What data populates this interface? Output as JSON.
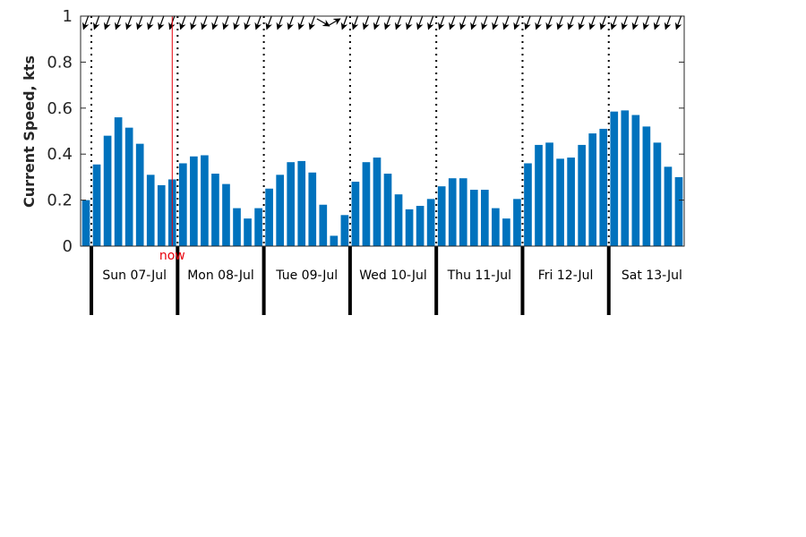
{
  "chart_data": {
    "type": "bar",
    "ylabel": "Current Speed, kts",
    "ylim": [
      0,
      1
    ],
    "yticks": [
      "0",
      "0.2",
      "0.4",
      "0.6",
      "0.8",
      "1"
    ],
    "bar_color": "#0072bd",
    "now_color": "#e8000b",
    "now_label": "now",
    "now_index": 8.5,
    "first_time": "Sat 06-Jul 21:00",
    "interval_hours": 3,
    "values": [
      0.2,
      0.355,
      0.48,
      0.56,
      0.515,
      0.445,
      0.31,
      0.265,
      0.29,
      0.36,
      0.39,
      0.395,
      0.315,
      0.27,
      0.165,
      0.12,
      0.165,
      0.25,
      0.31,
      0.365,
      0.37,
      0.32,
      0.18,
      0.045,
      0.135,
      0.28,
      0.365,
      0.385,
      0.315,
      0.225,
      0.16,
      0.175,
      0.205,
      0.26,
      0.295,
      0.295,
      0.245,
      0.245,
      0.165,
      0.12,
      0.205,
      0.36,
      0.44,
      0.45,
      0.38,
      0.385,
      0.44,
      0.49,
      0.51,
      0.585,
      0.59,
      0.57,
      0.52,
      0.45,
      0.345,
      0.3
    ],
    "days": [
      {
        "label": "Sun 07-Jul",
        "start_index": 1
      },
      {
        "label": "Mon 08-Jul",
        "start_index": 9
      },
      {
        "label": "Tue 09-Jul",
        "start_index": 17
      },
      {
        "label": "Wed 10-Jul",
        "start_index": 25
      },
      {
        "label": "Thu 11-Jul",
        "start_index": 33
      },
      {
        "label": "Fri 12-Jul",
        "start_index": 41
      },
      {
        "label": "Sat 13-Jul",
        "start_index": 49
      }
    ],
    "direction_deg": [
      200,
      200,
      200,
      200,
      200,
      200,
      200,
      200,
      200,
      200,
      200,
      200,
      200,
      200,
      200,
      200,
      200,
      200,
      200,
      200,
      200,
      200,
      120,
      60,
      200,
      200,
      200,
      200,
      200,
      200,
      200,
      200,
      200,
      200,
      200,
      200,
      200,
      200,
      200,
      200,
      200,
      200,
      200,
      200,
      200,
      200,
      200,
      200,
      200,
      200,
      200,
      200,
      200,
      200,
      200,
      200
    ]
  }
}
